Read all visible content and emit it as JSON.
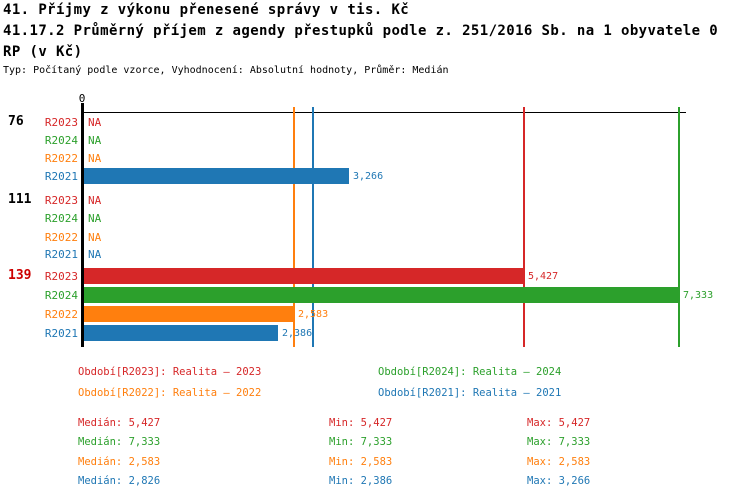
{
  "colors": {
    "red": "#d62728",
    "green": "#2ca02c",
    "orange": "#ff7f0e",
    "blue": "#1f77b4",
    "black": "#000000",
    "highlight": "#cc0000"
  },
  "header": {
    "title_line1": "41. Příjmy z výkonu přenesené správy v tis. Kč",
    "title_line2": "41.17.2 Průměrný příjem z agendy přestupků podle z. 251/2016 Sb. na 1 obyvatele 0",
    "title_line3": "RP (v Kč)",
    "subtitle": "Typ: Počítaný podle vzorce, Vyhodnocení: Absolutní hodnoty, Průměr: Medián"
  },
  "chart_data": {
    "type": "bar",
    "orientation": "horizontal",
    "xlim": [
      0,
      7420
    ],
    "zero_label": "0",
    "grid": false,
    "groups": [
      {
        "label": "76",
        "rows": [
          {
            "series": "R2023",
            "value": null,
            "display": "NA",
            "color_key": "red"
          },
          {
            "series": "R2024",
            "value": null,
            "display": "NA",
            "color_key": "green"
          },
          {
            "series": "R2022",
            "value": null,
            "display": "NA",
            "color_key": "orange"
          },
          {
            "series": "R2021",
            "value": 3266,
            "display": "3,266",
            "color_key": "blue"
          }
        ]
      },
      {
        "label": "111",
        "rows": [
          {
            "series": "R2023",
            "value": null,
            "display": "NA",
            "color_key": "red"
          },
          {
            "series": "R2024",
            "value": null,
            "display": "NA",
            "color_key": "green"
          },
          {
            "series": "R2022",
            "value": null,
            "display": "NA",
            "color_key": "orange"
          },
          {
            "series": "R2021",
            "value": null,
            "display": "NA",
            "color_key": "blue"
          }
        ]
      },
      {
        "label": "139",
        "rows": [
          {
            "series": "R2023",
            "value": 5427,
            "display": "5,427",
            "color_key": "red"
          },
          {
            "series": "R2024",
            "value": 7333,
            "display": "7,333",
            "color_key": "green"
          },
          {
            "series": "R2022",
            "value": 2583,
            "display": "2,583",
            "color_key": "orange"
          },
          {
            "series": "R2021",
            "value": 2386,
            "display": "2,386",
            "color_key": "blue"
          }
        ]
      }
    ],
    "median_lines": [
      {
        "series": "R2022",
        "value": 2583,
        "color_key": "orange"
      },
      {
        "series": "R2021",
        "value": 2826,
        "color_key": "blue"
      },
      {
        "series": "R2023",
        "value": 5427,
        "color_key": "red"
      },
      {
        "series": "R2024",
        "value": 7333,
        "color_key": "green"
      }
    ]
  },
  "legend": {
    "items": [
      {
        "label": "Období[R2023]: Realita – 2023",
        "color_key": "red"
      },
      {
        "label": "Období[R2024]: Realita – 2024",
        "color_key": "green"
      },
      {
        "label": "Období[R2022]: Realita – 2022",
        "color_key": "orange"
      },
      {
        "label": "Období[R2021]: Realita – 2021",
        "color_key": "blue"
      }
    ]
  },
  "stats": {
    "rows": [
      {
        "median": "Medián: 5,427",
        "min": "Min: 5,427",
        "max": "Max: 5,427",
        "color_key": "red"
      },
      {
        "median": "Medián: 7,333",
        "min": "Min: 7,333",
        "max": "Max: 7,333",
        "color_key": "green"
      },
      {
        "median": "Medián: 2,583",
        "min": "Min: 2,583",
        "max": "Max: 2,583",
        "color_key": "orange"
      },
      {
        "median": "Medián: 2,826",
        "min": "Min: 2,386",
        "max": "Max: 3,266",
        "color_key": "blue"
      }
    ]
  }
}
